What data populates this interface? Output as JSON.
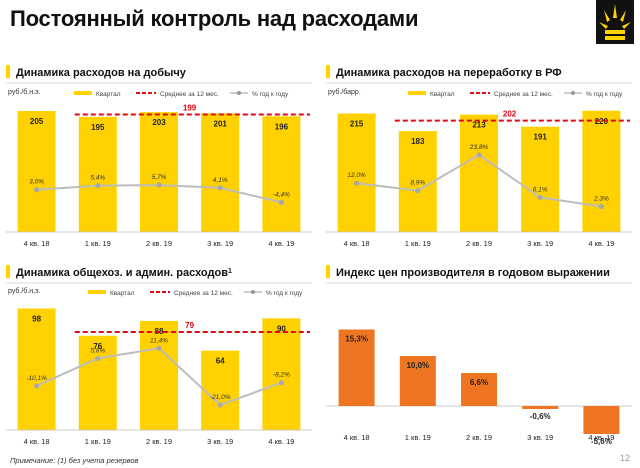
{
  "page": {
    "title": "Постоянный контроль над расходами",
    "footnote": "Примечание: (1) без учета резервов",
    "page_number": "12"
  },
  "colors": {
    "bar": "#FFD100",
    "bar_orange": "#EE7623",
    "avg_line": "#E30613",
    "pct_line": "#BDBDBD",
    "accent": "#FFD100"
  },
  "chart_data": [
    {
      "id": "production",
      "type": "bar",
      "title": "Динамика расходов на добычу",
      "unit": "руб./б.н.э.",
      "legend": {
        "bar": "Квартал",
        "avg": "Среднее за 12 мес.",
        "pct": "% год к году"
      },
      "categories": [
        "4 кв. 18",
        "1 кв. 19",
        "2 кв. 19",
        "3 кв. 19",
        "4 кв. 19"
      ],
      "values": [
        205,
        195,
        203,
        201,
        196
      ],
      "value_labels": [
        "205",
        "195",
        "203",
        "201",
        "196"
      ],
      "avg_value": 199,
      "avg_label": "199",
      "pct": [
        3.0,
        5.4,
        5.7,
        4.1,
        -4.4
      ],
      "pct_labels": [
        "3,0%",
        "5,4%",
        "5,7%",
        "4,1%",
        "-4,4%"
      ]
    },
    {
      "id": "refining",
      "type": "bar",
      "title": "Динамика расходов на переработку в РФ",
      "unit": "руб./барр.",
      "legend": {
        "bar": "Квартал",
        "avg": "Среднее за 12 мес.",
        "pct": "% год к году"
      },
      "categories": [
        "4 кв. 18",
        "1 кв. 19",
        "2 кв. 19",
        "3 кв. 19",
        "4 кв. 19"
      ],
      "values": [
        215,
        183,
        213,
        191,
        220
      ],
      "value_labels": [
        "215",
        "183",
        "213",
        "191",
        "220"
      ],
      "avg_value": 202,
      "avg_label": "202",
      "pct": [
        12.0,
        8.9,
        23.8,
        6.1,
        2.3
      ],
      "pct_labels": [
        "12,0%",
        "8,9%",
        "23,8%",
        "6,1%",
        "2,3%"
      ]
    },
    {
      "id": "sga",
      "type": "bar",
      "title": "Динамика общехоз. и админ. расходов",
      "title_sup": "1",
      "unit": "руб./б.н.э.",
      "legend": {
        "bar": "Квартал",
        "avg": "Среднее за 12 мес.",
        "pct": "% год к году"
      },
      "categories": [
        "4 кв. 18",
        "1 кв. 19",
        "2 кв. 19",
        "3 кв. 19",
        "4 кв. 19"
      ],
      "values": [
        98,
        76,
        88,
        64,
        90
      ],
      "value_labels": [
        "98",
        "76",
        "88",
        "64",
        "90"
      ],
      "avg_value": 79,
      "avg_label": "79",
      "pct": [
        -10.1,
        5.6,
        11.4,
        -21.0,
        -8.2
      ],
      "pct_labels": [
        "-10,1%",
        "5,6%",
        "11,4%",
        "-21,0%",
        "-8,2%"
      ]
    },
    {
      "id": "ppi",
      "type": "bar",
      "title": "Индекс цен производителя в годовом выражении",
      "categories": [
        "4 кв. 18",
        "1 кв. 19",
        "2 кв. 19",
        "3 кв. 19",
        "4 кв. 19"
      ],
      "values": [
        15.3,
        10.0,
        6.6,
        -0.6,
        -5.6
      ],
      "value_labels": [
        "15,3%",
        "10,0%",
        "6,6%",
        "-0,6%",
        "-5,6%"
      ]
    }
  ]
}
